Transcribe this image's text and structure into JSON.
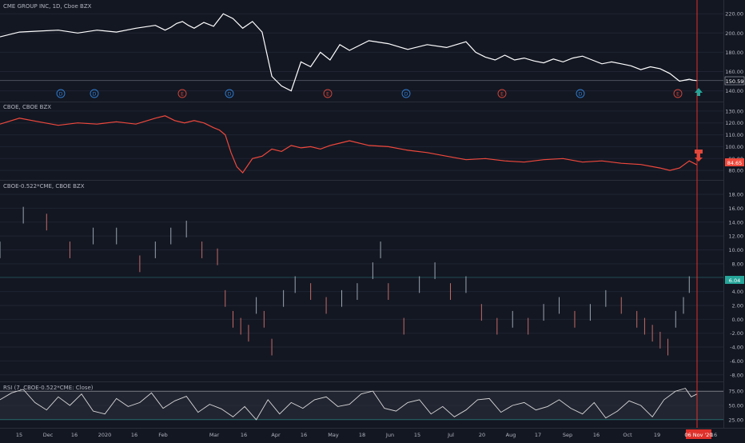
{
  "colors": {
    "background": "#131722",
    "grid": "#1f2433",
    "separator": "#2a2e39",
    "axis_text": "#b2b5be",
    "title_text": "#b2b5be",
    "price_line": "#ffffff",
    "cboe_line": "#f0483c",
    "bar_up": "#9aa4b0",
    "bar_down": "#c46a66",
    "rsi_line": "#d8d8d8",
    "rsi_band": "#2e323e",
    "cursor_line": "#e0312b",
    "dividend_badge": "#2f7fd6",
    "earnings_badge": "#d9453a",
    "up_arrow": "#26a69a",
    "down_arrow": "#e0473a",
    "last_value_green": "#26a69a",
    "last_value_red": "#f0483c"
  },
  "panes": {
    "cme": {
      "title": "CME GROUP INC, 1D, Cboe BZX",
      "ticks": [
        "220.00",
        "200.00",
        "180.00",
        "160.00",
        "140.00"
      ],
      "last_value": "150.59"
    },
    "cboe": {
      "title": "CBOE, CBOE BZX",
      "ticks": [
        "130.00",
        "120.00",
        "110.00",
        "100.00",
        "90.00",
        "80.00"
      ],
      "last_value": "84.65"
    },
    "spread": {
      "title": "CBOE-0.522*CME, CBOE BZX",
      "ticks": [
        "18.00",
        "16.00",
        "14.00",
        "12.00",
        "10.00",
        "8.00",
        "6.00",
        "4.00",
        "2.00",
        "0.00",
        "-2.00",
        "-4.00",
        "-6.00",
        "-8.00"
      ],
      "last_value": "6.04"
    },
    "rsi": {
      "title": "RSI (7, CBOE-0.522*CME: Close)",
      "ticks": [
        "75.00",
        "50.00",
        "25.00"
      ]
    }
  },
  "event_badges": [
    {
      "type": "dividend",
      "label": "D"
    },
    {
      "type": "dividend",
      "label": "D"
    },
    {
      "type": "earnings",
      "label": "E"
    },
    {
      "type": "dividend",
      "label": "D"
    },
    {
      "type": "earnings",
      "label": "E"
    },
    {
      "type": "dividend",
      "label": "D"
    },
    {
      "type": "earnings",
      "label": "E"
    },
    {
      "type": "dividend",
      "label": "D"
    },
    {
      "type": "earnings",
      "label": "E"
    }
  ],
  "time_axis": {
    "labels": [
      "15",
      "Dec",
      "16",
      "2020",
      "16",
      "Feb",
      "Mar",
      "16",
      "Apr",
      "16",
      "May",
      "18",
      "Jun",
      "15",
      "Jul",
      "20",
      "Aug",
      "17",
      "Sep",
      "16",
      "Oct",
      "19",
      "16"
    ],
    "cursor_label": "06 Nov '20"
  },
  "chart_data": [
    {
      "type": "line",
      "title": "CME GROUP INC, 1D, Cboe BZX",
      "ylim": [
        133,
        226
      ],
      "x": [
        0,
        10,
        20,
        30,
        40,
        50,
        60,
        70,
        80,
        85,
        88,
        91,
        94,
        97,
        100,
        105,
        110,
        115,
        120,
        125,
        130,
        135,
        140,
        145,
        150,
        155,
        160,
        165,
        170,
        175,
        180,
        190,
        200,
        210,
        220,
        230,
        240,
        245,
        250,
        255,
        260,
        265,
        270,
        275,
        280,
        285,
        290,
        295,
        300,
        305,
        310,
        315,
        320,
        325,
        330,
        335,
        340,
        345,
        350,
        355,
        357,
        359
      ],
      "series": [
        {
          "values": [
            196,
            201,
            202,
            203,
            200,
            203,
            201,
            205,
            208,
            203,
            206,
            210,
            212,
            208,
            205,
            211,
            207,
            220,
            215,
            205,
            212,
            201,
            155,
            145,
            140,
            170,
            165,
            180,
            172,
            188,
            182,
            192,
            189,
            183,
            188,
            185,
            191,
            180,
            175,
            172,
            177,
            172,
            174,
            171,
            169,
            173,
            170,
            174,
            176,
            172,
            168,
            170,
            168,
            166,
            162,
            165,
            163,
            158,
            150,
            152,
            151,
            150.59
          ]
        }
      ]
    },
    {
      "type": "line",
      "title": "CBOE, CBOE BZX",
      "ylim": [
        74,
        136
      ],
      "x": [
        0,
        10,
        20,
        30,
        40,
        50,
        60,
        70,
        80,
        85,
        90,
        95,
        100,
        105,
        110,
        113,
        116,
        119,
        122,
        125,
        130,
        135,
        140,
        145,
        150,
        155,
        160,
        165,
        170,
        175,
        180,
        190,
        200,
        210,
        220,
        230,
        240,
        250,
        260,
        270,
        280,
        290,
        300,
        310,
        320,
        330,
        340,
        345,
        350,
        355,
        359
      ],
      "series": [
        {
          "values": [
            119,
            124,
            121,
            118,
            120,
            119,
            121,
            119,
            124,
            126,
            122,
            120,
            122,
            120,
            116,
            114,
            110,
            95,
            83,
            78,
            90,
            92,
            98,
            96,
            101,
            99,
            100,
            98,
            101,
            103,
            105,
            101,
            100,
            97,
            95,
            92,
            89,
            90,
            88,
            87,
            89,
            90,
            87,
            88,
            86,
            85,
            82,
            80,
            82,
            88,
            84.65
          ]
        }
      ]
    },
    {
      "type": "bar",
      "title": "CBOE-0.522*CME, CBOE BZX",
      "ylim": [
        -8.6,
        19.5
      ],
      "x": [
        0,
        12,
        24,
        36,
        48,
        60,
        72,
        80,
        88,
        96,
        104,
        112,
        116,
        120,
        124,
        128,
        132,
        136,
        140,
        146,
        152,
        160,
        168,
        176,
        184,
        192,
        196,
        200,
        208,
        216,
        224,
        232,
        240,
        248,
        256,
        264,
        272,
        280,
        288,
        296,
        304,
        312,
        320,
        328,
        332,
        336,
        340,
        344,
        348,
        352,
        355,
        359
      ],
      "series": [
        {
          "values": [
            10,
            15,
            14,
            10,
            12,
            12,
            8,
            10,
            12,
            13,
            10,
            9,
            3,
            0,
            -1,
            -2,
            2,
            0,
            -4,
            3,
            5,
            4,
            2,
            3,
            4,
            7,
            10,
            4,
            -1,
            5,
            7,
            4,
            5,
            1,
            -1,
            0,
            -1,
            1,
            2,
            0,
            1,
            3,
            2,
            0,
            -1,
            -2,
            -3,
            -4,
            0,
            2,
            5,
            6.04
          ]
        }
      ]
    },
    {
      "type": "line",
      "title": "RSI (7, CBOE-0.522*CME: Close)",
      "ylim": [
        15,
        85
      ],
      "x": [
        0,
        6,
        12,
        18,
        24,
        30,
        36,
        42,
        48,
        54,
        60,
        66,
        72,
        78,
        84,
        90,
        96,
        102,
        108,
        114,
        120,
        126,
        132,
        138,
        144,
        150,
        156,
        162,
        168,
        174,
        180,
        186,
        192,
        198,
        204,
        210,
        216,
        222,
        228,
        234,
        240,
        246,
        252,
        258,
        264,
        270,
        276,
        282,
        288,
        294,
        300,
        306,
        312,
        318,
        324,
        330,
        336,
        342,
        348,
        353,
        356,
        359
      ],
      "series": [
        {
          "values": [
            60,
            72,
            78,
            55,
            42,
            65,
            50,
            70,
            40,
            35,
            62,
            48,
            55,
            72,
            45,
            58,
            66,
            38,
            52,
            44,
            30,
            48,
            25,
            60,
            35,
            55,
            45,
            60,
            65,
            48,
            52,
            70,
            75,
            45,
            40,
            55,
            60,
            35,
            48,
            30,
            42,
            60,
            62,
            38,
            50,
            55,
            42,
            48,
            60,
            45,
            35,
            55,
            28,
            40,
            58,
            50,
            30,
            60,
            75,
            80,
            65,
            70
          ]
        }
      ]
    }
  ]
}
